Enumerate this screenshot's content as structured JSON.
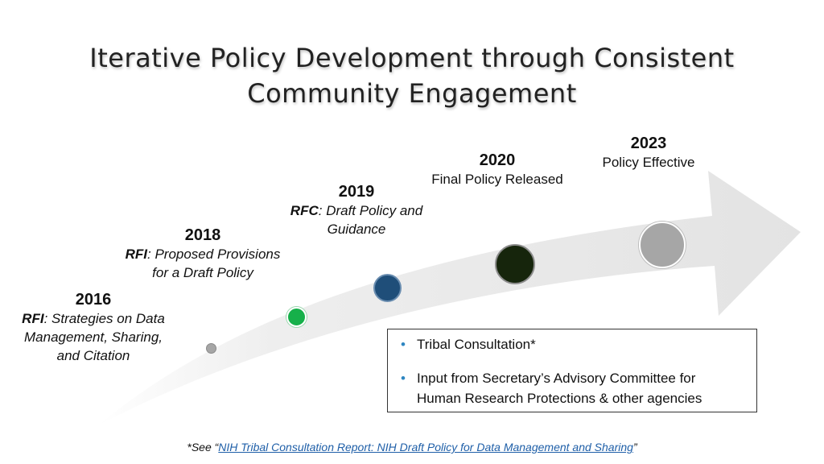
{
  "title": {
    "line1": "Iterative Policy Development through Consistent",
    "line2": "Community Engagement"
  },
  "milestones": [
    {
      "id": "2016",
      "year": "2016",
      "abbr": "RFI",
      "text_a": ": Strategies on Data",
      "text_b": "Management, Sharing,",
      "text_c": "and Citation",
      "dot_color": "#A6A6A6"
    },
    {
      "id": "2018",
      "year": "2018",
      "abbr": "RFI",
      "text_a": ": Proposed Provisions",
      "text_b": "for a Draft Policy",
      "dot_color": "#16B04A"
    },
    {
      "id": "2019",
      "year": "2019",
      "abbr": "RFC",
      "text_a": ": Draft Policy and",
      "text_b": "Guidance",
      "dot_color": "#1F4E79"
    },
    {
      "id": "2020",
      "year": "2020",
      "text_a": "Final Policy Released",
      "dot_color": "#16250C"
    },
    {
      "id": "2023",
      "year": "2023",
      "text_a": "Policy Effective",
      "dot_color": "#A6A6A6"
    }
  ],
  "info_box": {
    "items": [
      "Tribal Consultation*",
      "Input from Secretary’s Advisory Committee for",
      "Human Research Protections & other agencies"
    ]
  },
  "footnote": {
    "prefix": "*See “",
    "link_text": "NIH Tribal Consultation Report: NIH Draft Policy for Data Management and Sharing",
    "suffix": "”"
  },
  "colors": {
    "arrow": "#E6E6E6",
    "bullet": "#2E86C1",
    "link": "#1F5FA8"
  }
}
